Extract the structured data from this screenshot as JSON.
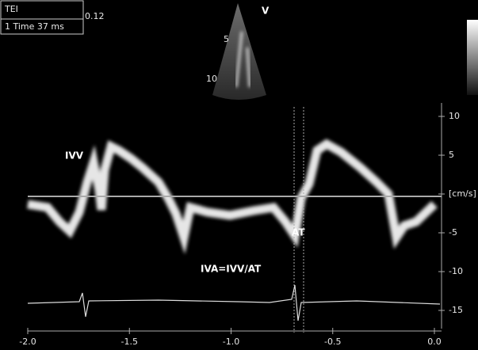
{
  "header": {
    "mode": "TEI",
    "measurement": "1 Time  37 ms",
    "scale": "0.12",
    "view": "V"
  },
  "depth_ticks": [
    "5",
    "10"
  ],
  "y_axis_ticks": [
    "10",
    "5",
    "[cm/s]",
    "-5",
    "-10",
    "-15"
  ],
  "x_axis_ticks": [
    "-2.0",
    "-1.5",
    "-1.0",
    "-0.5",
    "0.0"
  ],
  "annotations": {
    "ivv": "IVV",
    "at": "AT",
    "formula": "IVA=IVV/AT"
  }
}
